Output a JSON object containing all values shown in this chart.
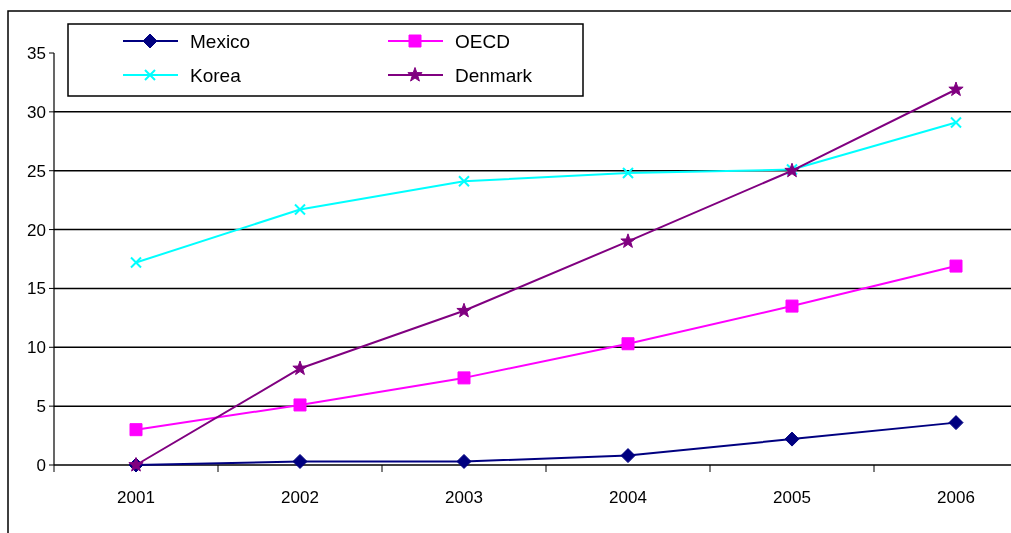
{
  "chart_data": {
    "type": "line",
    "categories": [
      "2001",
      "2002",
      "2003",
      "2004",
      "2005",
      "2006"
    ],
    "series": [
      {
        "name": "Mexico",
        "color": "#000080",
        "marker": "diamond",
        "values": [
          0,
          0.3,
          0.3,
          0.8,
          2.2,
          3.6
        ]
      },
      {
        "name": "OECD",
        "color": "#ff00ff",
        "marker": "square",
        "values": [
          3.0,
          5.1,
          7.4,
          10.3,
          13.5,
          16.9
        ]
      },
      {
        "name": "Korea",
        "color": "#00ffff",
        "marker": "cross",
        "values": [
          17.2,
          21.7,
          24.1,
          24.8,
          25.1,
          29.1
        ]
      },
      {
        "name": "Denmark",
        "color": "#800080",
        "marker": "star",
        "values": [
          0,
          8.2,
          13.1,
          19.0,
          25.0,
          31.9
        ]
      }
    ],
    "ylim": [
      0,
      35
    ],
    "yticks": [
      0,
      5,
      10,
      15,
      20,
      25,
      30,
      35
    ],
    "grid": "y",
    "legend": "top left"
  }
}
